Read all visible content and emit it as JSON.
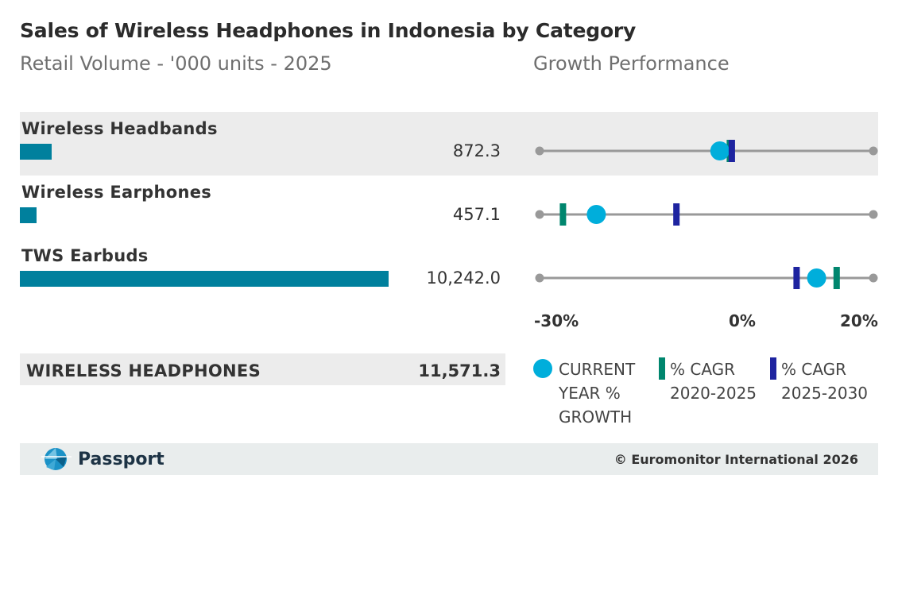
{
  "header": {
    "title": "Sales of Wireless Headphones in Indonesia by Category",
    "subtitle_left": "Retail Volume - '000 units - 2025",
    "subtitle_right": "Growth Performance"
  },
  "colors": {
    "bar": "#00809d",
    "current_growth": "#00aedb",
    "cagr_2020_2025": "#00866e",
    "cagr_2025_2030": "#1e24a0",
    "axis_line": "#999999"
  },
  "chart_data": [
    {
      "type": "bar",
      "title": "Retail Volume - '000 units - 2025",
      "categories": [
        "Wireless Headbands",
        "Wireless Earphones",
        "TWS Earbuds"
      ],
      "values": [
        872.3,
        457.1,
        10242.0
      ],
      "value_labels": [
        "872.3",
        "457.1",
        "10,242.0"
      ],
      "total_label": "WIRELESS HEADPHONES",
      "total_value": "11,571.3"
    },
    {
      "type": "scatter",
      "title": "Growth Performance",
      "categories": [
        "Wireless Headbands",
        "Wireless Earphones",
        "TWS Earbuds"
      ],
      "xlim": [
        -30,
        20
      ],
      "x_ticks": [
        "-30%",
        "0%",
        "20%"
      ],
      "series": [
        {
          "name": "CURRENT YEAR % GROWTH",
          "marker": "dot",
          "values": [
            -3.0,
            -21.5,
            11.5
          ]
        },
        {
          "name": "% CAGR 2020-2025",
          "marker": "bar",
          "values": [
            -1.5,
            -26.5,
            14.5
          ]
        },
        {
          "name": "% CAGR 2025-2030",
          "marker": "bar",
          "values": [
            -1.2,
            -9.5,
            8.5
          ]
        }
      ]
    }
  ],
  "legend": {
    "current_line1": "CURRENT",
    "current_line2": "YEAR %",
    "current_line3": "GROWTH",
    "cagr1_line1": "% CAGR",
    "cagr1_line2": "2020-2025",
    "cagr2_line1": "% CAGR",
    "cagr2_line2": "2025-2030"
  },
  "footer": {
    "brand": "Passport",
    "copyright": "© Euromonitor International 2026",
    "logo_icon": "passport-globe-icon"
  }
}
